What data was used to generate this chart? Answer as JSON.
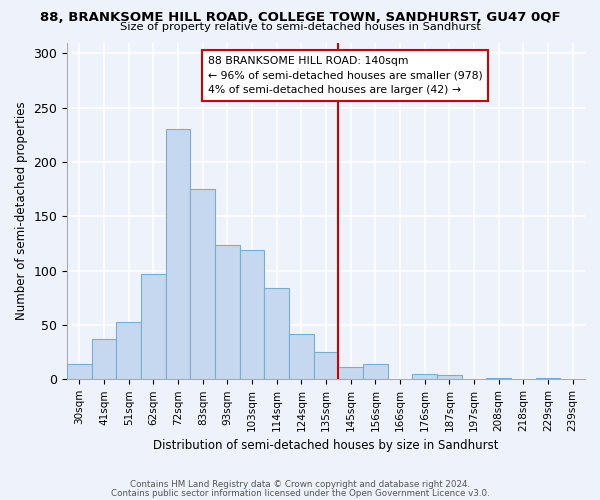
{
  "title": "88, BRANKSOME HILL ROAD, COLLEGE TOWN, SANDHURST, GU47 0QF",
  "subtitle": "Size of property relative to semi-detached houses in Sandhurst",
  "xlabel": "Distribution of semi-detached houses by size in Sandhurst",
  "ylabel": "Number of semi-detached properties",
  "categories": [
    "30sqm",
    "41sqm",
    "51sqm",
    "62sqm",
    "72sqm",
    "83sqm",
    "93sqm",
    "103sqm",
    "114sqm",
    "124sqm",
    "135sqm",
    "145sqm",
    "156sqm",
    "166sqm",
    "176sqm",
    "187sqm",
    "197sqm",
    "208sqm",
    "218sqm",
    "229sqm",
    "239sqm"
  ],
  "values": [
    14,
    37,
    53,
    97,
    230,
    175,
    124,
    119,
    84,
    42,
    25,
    11,
    14,
    0,
    5,
    4,
    0,
    1,
    0,
    1,
    0
  ],
  "bar_color": "#c5d8f0",
  "bar_edge_color": "#7aadd4",
  "vline_color": "#cc0000",
  "vline_pos": 10.5,
  "annotation_line1": "88 BRANKSOME HILL ROAD: 140sqm",
  "annotation_line2": "← 96% of semi-detached houses are smaller (978)",
  "annotation_line3": "4% of semi-detached houses are larger (42) →",
  "annotation_box_color": "#ffffff",
  "annotation_box_edge": "#cc0000",
  "ylim": [
    0,
    310
  ],
  "yticks": [
    0,
    50,
    100,
    150,
    200,
    250,
    300
  ],
  "footer1": "Contains HM Land Registry data © Crown copyright and database right 2024.",
  "footer2": "Contains public sector information licensed under the Open Government Licence v3.0.",
  "background_color": "#eef2fb",
  "grid_color": "#ffffff"
}
